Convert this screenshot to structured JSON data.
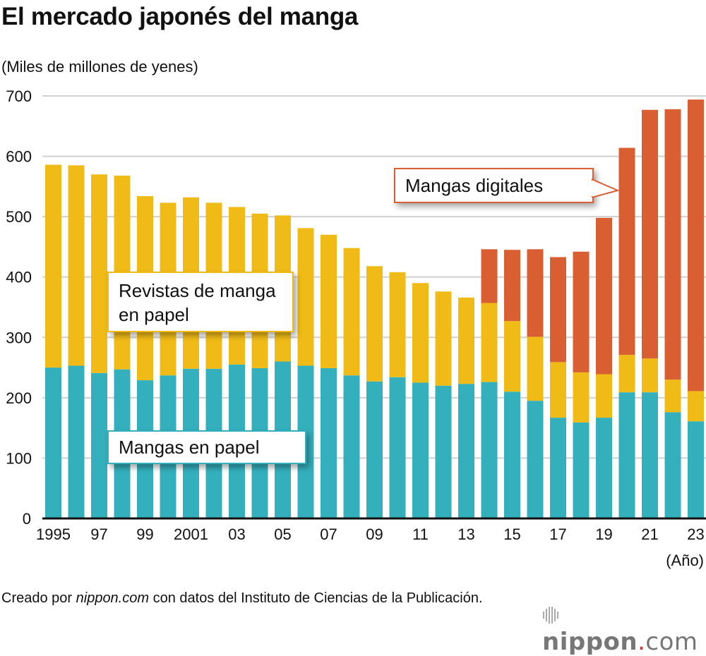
{
  "title": "El mercado japonés del manga",
  "unit_label": "(Miles de millones de yenes)",
  "year_unit": "(Año)",
  "source": {
    "prefix": "Creado por ",
    "site": "nippon.com",
    "suffix": " con datos del Instituto de Ciencias de la Publicación."
  },
  "logo": {
    "name": "nippon",
    "dot": ".",
    "tld": "com"
  },
  "colors": {
    "print_manga": "#34b0bd",
    "print_magazines": "#f0bb17",
    "digital": "#d95e32"
  },
  "chart_data": {
    "type": "bar",
    "stacked": true,
    "title": "El mercado japonés del manga",
    "xlabel": "(Año)",
    "ylabel": "(Miles de millones de yenes)",
    "ylim": [
      0,
      700
    ],
    "yticks": [
      0,
      100,
      200,
      300,
      400,
      500,
      600,
      700
    ],
    "grid": true,
    "categories": [
      "1995",
      "1996",
      "1997",
      "1998",
      "1999",
      "2000",
      "2001",
      "2002",
      "2003",
      "2004",
      "2005",
      "2006",
      "2007",
      "2008",
      "2009",
      "2010",
      "2011",
      "2012",
      "2013",
      "2014",
      "2015",
      "2016",
      "2017",
      "2018",
      "2019",
      "2020",
      "2021",
      "2022",
      "2023"
    ],
    "xtick_labels": [
      {
        "index": 0,
        "label": "1995"
      },
      {
        "index": 2,
        "label": "97"
      },
      {
        "index": 4,
        "label": "99"
      },
      {
        "index": 6,
        "label": "2001"
      },
      {
        "index": 8,
        "label": "03"
      },
      {
        "index": 10,
        "label": "05"
      },
      {
        "index": 12,
        "label": "07"
      },
      {
        "index": 14,
        "label": "09"
      },
      {
        "index": 16,
        "label": "11"
      },
      {
        "index": 18,
        "label": "13"
      },
      {
        "index": 20,
        "label": "15"
      },
      {
        "index": 22,
        "label": "17"
      },
      {
        "index": 24,
        "label": "19"
      },
      {
        "index": 26,
        "label": "21"
      },
      {
        "index": 28,
        "label": "23"
      }
    ],
    "series": [
      {
        "name": "Mangas en papel",
        "color": "#34b0bd",
        "values": [
          250,
          253,
          241,
          247,
          229,
          237,
          248,
          248,
          255,
          249,
          260,
          253,
          249,
          237,
          227,
          234,
          225,
          220,
          223,
          226,
          210,
          195,
          167,
          159,
          167,
          209,
          209,
          176,
          161
        ]
      },
      {
        "name": "Revistas de manga en papel",
        "color": "#f0bb17",
        "values": [
          336,
          332,
          329,
          321,
          305,
          286,
          284,
          275,
          261,
          256,
          242,
          228,
          221,
          211,
          191,
          174,
          165,
          156,
          143,
          131,
          117,
          106,
          92,
          83,
          72,
          62,
          56,
          54,
          50
        ]
      },
      {
        "name": "Mangas digitales",
        "color": "#d95e32",
        "values": [
          0,
          0,
          0,
          0,
          0,
          0,
          0,
          0,
          0,
          0,
          0,
          0,
          0,
          0,
          0,
          0,
          0,
          0,
          0,
          89,
          118,
          145,
          174,
          200,
          259,
          343,
          412,
          448,
          483
        ]
      }
    ],
    "annotations": [
      {
        "text": "Revistas de manga en papel",
        "series": "Revistas de manga en papel"
      },
      {
        "text": "Mangas en papel",
        "series": "Mangas en papel"
      },
      {
        "text": "Mangas digitales",
        "series": "Mangas digitales"
      }
    ]
  }
}
